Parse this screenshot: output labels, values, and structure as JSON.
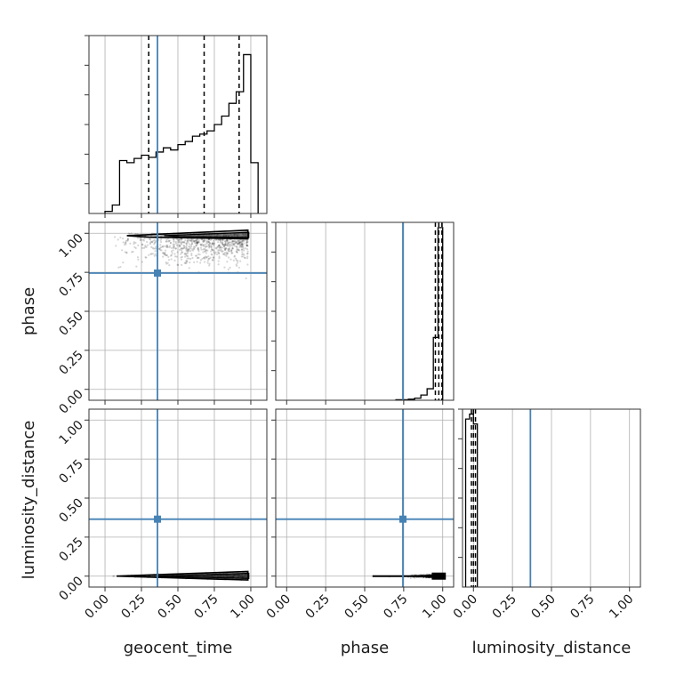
{
  "chart_data": {
    "type": "corner",
    "parameters": [
      "geocent_time",
      "phase",
      "luminosity_distance"
    ],
    "axis_labels": {
      "geocent_time": "geocent_time",
      "phase": "phase",
      "luminosity_distance": "luminosity_distance"
    },
    "ticks": [
      0.0,
      0.25,
      0.5,
      0.75,
      1.0
    ],
    "tick_labels": [
      "0.00",
      "0.25",
      "0.50",
      "0.75",
      "1.00"
    ],
    "ranges": {
      "geocent_time": [
        -0.11,
        1.11
      ],
      "phase": [
        -0.07,
        1.07
      ],
      "luminosity_distance": [
        -0.07,
        1.07
      ]
    },
    "truths": {
      "geocent_time": 0.36,
      "phase": 0.745,
      "luminosity_distance": 0.365
    },
    "truth_color": "#4682b4",
    "grid": true,
    "histograms": {
      "geocent_time": {
        "bin_edges": [
          0.0,
          0.05,
          0.1,
          0.15,
          0.2,
          0.25,
          0.3,
          0.35,
          0.4,
          0.45,
          0.5,
          0.55,
          0.6,
          0.65,
          0.7,
          0.75,
          0.8,
          0.85,
          0.9,
          0.95,
          1.0,
          1.05
        ],
        "counts": [
          2,
          8,
          50,
          48,
          52,
          55,
          53,
          58,
          62,
          60,
          65,
          68,
          73,
          75,
          78,
          84,
          92,
          104,
          115,
          150,
          48
        ],
        "ymax": 168,
        "quantiles": [
          0.3,
          0.68,
          0.92
        ]
      },
      "phase": {
        "bin_edges": [
          0.7,
          0.74,
          0.78,
          0.82,
          0.86,
          0.9,
          0.94,
          0.97,
          1.0
        ],
        "counts": [
          1,
          1,
          2,
          4,
          10,
          22,
          120,
          330
        ],
        "ymax": 340,
        "quantiles": [
          0.953,
          0.975,
          0.995
        ]
      },
      "luminosity_distance": {
        "bin_edges": [
          -0.05,
          -0.025,
          0.0,
          0.025
        ],
        "counts": [
          340,
          350,
          330
        ],
        "ymax": 360,
        "quantiles": [
          -0.013,
          0.0,
          0.013
        ]
      }
    }
  }
}
